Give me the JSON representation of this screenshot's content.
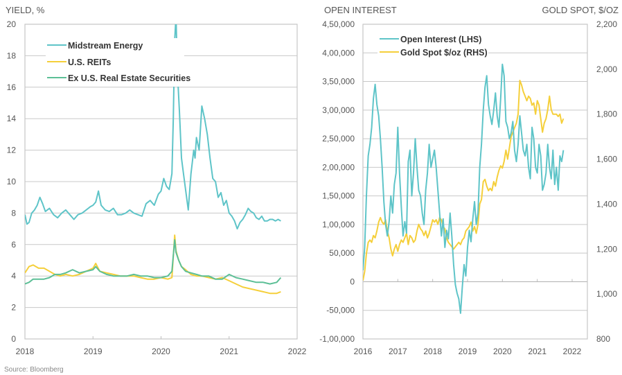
{
  "source": "Source: Bloomberg",
  "colors": {
    "teal": "#5ec4c8",
    "yellow": "#f5cf3a",
    "green": "#5cbf96",
    "grid": "#c8c8c8",
    "axis": "#bdbdbd"
  },
  "chart_data": [
    {
      "type": "line",
      "title": "",
      "ylabel": "YIELD, %",
      "xlabel": "",
      "x_ticks": [
        "2018",
        "2019",
        "2020",
        "2021",
        "2022"
      ],
      "xlim": [
        2018,
        2022
      ],
      "ylim": [
        0,
        20
      ],
      "y_ticks": [
        "0",
        "2",
        "4",
        "6",
        "8",
        "10",
        "12",
        "14",
        "16",
        "18",
        "20"
      ],
      "y_tick_values": [
        0,
        2,
        4,
        6,
        8,
        10,
        12,
        14,
        16,
        18,
        20
      ],
      "grid": true,
      "legend_position": "top-left",
      "series": [
        {
          "name": "Midstream Energy",
          "color_key": "teal",
          "x": [
            2018.0,
            2018.03,
            2018.06,
            2018.1,
            2018.14,
            2018.18,
            2018.22,
            2018.26,
            2018.3,
            2018.36,
            2018.42,
            2018.48,
            2018.54,
            2018.6,
            2018.66,
            2018.72,
            2018.78,
            2018.84,
            2018.9,
            2018.96,
            2019.0,
            2019.04,
            2019.08,
            2019.12,
            2019.18,
            2019.24,
            2019.3,
            2019.36,
            2019.42,
            2019.48,
            2019.54,
            2019.6,
            2019.66,
            2019.72,
            2019.78,
            2019.84,
            2019.9,
            2019.96,
            2020.0,
            2020.04,
            2020.08,
            2020.12,
            2020.16,
            2020.18,
            2020.2,
            2020.22,
            2020.24,
            2020.27,
            2020.3,
            2020.33,
            2020.36,
            2020.4,
            2020.44,
            2020.48,
            2020.5,
            2020.52,
            2020.56,
            2020.6,
            2020.64,
            2020.68,
            2020.72,
            2020.76,
            2020.8,
            2020.84,
            2020.88,
            2020.92,
            2020.96,
            2021.0,
            2021.04,
            2021.08,
            2021.12,
            2021.16,
            2021.2,
            2021.24,
            2021.28,
            2021.32,
            2021.36,
            2021.4,
            2021.44,
            2021.48,
            2021.52,
            2021.56,
            2021.6,
            2021.64,
            2021.68,
            2021.72,
            2021.76
          ],
          "values": [
            7.9,
            7.3,
            7.4,
            8.0,
            8.2,
            8.5,
            9.0,
            8.6,
            8.1,
            8.3,
            7.9,
            7.7,
            8.0,
            8.2,
            7.9,
            7.6,
            7.9,
            8.0,
            8.2,
            8.4,
            8.5,
            8.7,
            9.4,
            8.5,
            8.2,
            8.1,
            8.3,
            7.9,
            7.9,
            8.0,
            8.2,
            8.0,
            7.9,
            7.8,
            8.6,
            8.8,
            8.5,
            9.2,
            9.4,
            10.2,
            9.7,
            9.5,
            10.5,
            14.0,
            19.0,
            20.5,
            17.0,
            14.5,
            11.5,
            10.5,
            9.5,
            8.2,
            10.5,
            12.0,
            11.5,
            12.8,
            12.0,
            14.8,
            14.0,
            13.0,
            11.5,
            10.2,
            10.0,
            9.0,
            9.3,
            8.5,
            8.8,
            8.0,
            7.8,
            7.5,
            7.0,
            7.4,
            7.6,
            7.9,
            8.3,
            8.1,
            8.0,
            7.7,
            7.6,
            7.8,
            7.5,
            7.5,
            7.6,
            7.6,
            7.5,
            7.6,
            7.5
          ]
        },
        {
          "name": "U.S. REITs",
          "color_key": "yellow",
          "x": [
            2018.0,
            2018.06,
            2018.12,
            2018.2,
            2018.28,
            2018.36,
            2018.44,
            2018.52,
            2018.6,
            2018.7,
            2018.8,
            2018.9,
            2019.0,
            2019.04,
            2019.1,
            2019.2,
            2019.3,
            2019.4,
            2019.5,
            2019.6,
            2019.7,
            2019.8,
            2019.9,
            2020.0,
            2020.1,
            2020.16,
            2020.2,
            2020.22,
            2020.26,
            2020.3,
            2020.36,
            2020.44,
            2020.52,
            2020.6,
            2020.7,
            2020.8,
            2020.9,
            2021.0,
            2021.1,
            2021.2,
            2021.3,
            2021.4,
            2021.5,
            2021.6,
            2021.7,
            2021.76
          ],
          "values": [
            4.2,
            4.6,
            4.7,
            4.5,
            4.5,
            4.3,
            4.1,
            4.0,
            4.1,
            4.0,
            4.1,
            4.3,
            4.5,
            4.8,
            4.3,
            4.2,
            4.1,
            4.0,
            4.0,
            4.0,
            3.9,
            3.8,
            3.8,
            3.9,
            3.8,
            3.9,
            6.6,
            5.6,
            5.0,
            4.6,
            4.4,
            4.1,
            4.0,
            4.0,
            3.9,
            3.8,
            3.9,
            3.7,
            3.5,
            3.3,
            3.2,
            3.1,
            3.0,
            2.9,
            2.9,
            3.0
          ]
        },
        {
          "name": "Ex U.S. Real Estate Securities",
          "color_key": "green",
          "x": [
            2018.0,
            2018.06,
            2018.12,
            2018.2,
            2018.28,
            2018.36,
            2018.44,
            2018.52,
            2018.6,
            2018.7,
            2018.8,
            2018.9,
            2019.0,
            2019.04,
            2019.1,
            2019.2,
            2019.3,
            2019.4,
            2019.5,
            2019.6,
            2019.7,
            2019.8,
            2019.9,
            2020.0,
            2020.1,
            2020.16,
            2020.2,
            2020.22,
            2020.26,
            2020.3,
            2020.36,
            2020.44,
            2020.52,
            2020.6,
            2020.7,
            2020.8,
            2020.9,
            2021.0,
            2021.1,
            2021.2,
            2021.3,
            2021.4,
            2021.5,
            2021.6,
            2021.7,
            2021.76
          ],
          "values": [
            3.5,
            3.6,
            3.8,
            3.8,
            3.8,
            3.9,
            4.1,
            4.1,
            4.2,
            4.4,
            4.2,
            4.3,
            4.4,
            4.6,
            4.3,
            4.1,
            4.0,
            4.0,
            4.0,
            4.1,
            4.0,
            4.0,
            3.9,
            3.9,
            4.0,
            4.3,
            6.3,
            5.5,
            5.0,
            4.6,
            4.3,
            4.2,
            4.1,
            4.0,
            4.0,
            3.8,
            3.8,
            4.1,
            3.9,
            3.8,
            3.7,
            3.6,
            3.6,
            3.5,
            3.6,
            3.9
          ]
        }
      ]
    },
    {
      "type": "line",
      "title": "",
      "ylabel": "OPEN INTEREST",
      "y2label": "GOLD SPOT, $/OZ",
      "xlabel": "",
      "x_ticks": [
        "2016",
        "2017",
        "2018",
        "2019",
        "2020",
        "2021",
        "2022"
      ],
      "xlim": [
        2016,
        2022
      ],
      "ylim": [
        -100000,
        450000
      ],
      "y_ticks": [
        "-1,00,000",
        "-50,000",
        "0",
        "50,000",
        "1,00,000",
        "1,50,000",
        "2,00,000",
        "2,50,000",
        "3,00,000",
        "3,50,000",
        "4,00,000",
        "4,50,000"
      ],
      "y_tick_values": [
        -100000,
        -50000,
        0,
        50000,
        100000,
        150000,
        200000,
        250000,
        300000,
        350000,
        400000,
        450000
      ],
      "y2lim": [
        800,
        2200
      ],
      "y2_ticks": [
        "800",
        "1,000",
        "1,200",
        "1,400",
        "1,600",
        "1,800",
        "2,000",
        "2,200"
      ],
      "y2_tick_values": [
        800,
        1000,
        1200,
        1400,
        1600,
        1800,
        2000,
        2200
      ],
      "grid": true,
      "legend_position": "top-left",
      "series": [
        {
          "name": "Open Interest (LHS)",
          "color_key": "teal",
          "axis": "left",
          "x": [
            2016.0,
            2016.05,
            2016.1,
            2016.15,
            2016.2,
            2016.25,
            2016.3,
            2016.35,
            2016.4,
            2016.45,
            2016.5,
            2016.55,
            2016.6,
            2016.65,
            2016.7,
            2016.75,
            2016.8,
            2016.85,
            2016.9,
            2016.95,
            2017.0,
            2017.05,
            2017.1,
            2017.15,
            2017.2,
            2017.25,
            2017.3,
            2017.35,
            2017.4,
            2017.45,
            2017.5,
            2017.55,
            2017.6,
            2017.65,
            2017.7,
            2017.75,
            2017.8,
            2017.85,
            2017.9,
            2017.95,
            2018.0,
            2018.05,
            2018.1,
            2018.15,
            2018.2,
            2018.25,
            2018.3,
            2018.35,
            2018.4,
            2018.45,
            2018.5,
            2018.55,
            2018.6,
            2018.65,
            2018.7,
            2018.75,
            2018.8,
            2018.85,
            2018.9,
            2018.95,
            2019.0,
            2019.05,
            2019.1,
            2019.15,
            2019.2,
            2019.25,
            2019.3,
            2019.35,
            2019.4,
            2019.45,
            2019.5,
            2019.55,
            2019.6,
            2019.65,
            2019.7,
            2019.75,
            2019.8,
            2019.85,
            2019.9,
            2019.95,
            2020.0,
            2020.05,
            2020.1,
            2020.15,
            2020.2,
            2020.25,
            2020.3,
            2020.35,
            2020.4,
            2020.45,
            2020.5,
            2020.55,
            2020.6,
            2020.65,
            2020.7,
            2020.75,
            2020.8,
            2020.85,
            2020.9,
            2020.95,
            2021.0,
            2021.05,
            2021.1,
            2021.15,
            2021.2,
            2021.25,
            2021.3,
            2021.35,
            2021.4,
            2021.45,
            2021.5,
            2021.55,
            2021.6,
            2021.65,
            2021.7,
            2021.75
          ],
          "values": [
            20000,
            60000,
            150000,
            220000,
            240000,
            270000,
            320000,
            345000,
            310000,
            290000,
            250000,
            200000,
            140000,
            100000,
            80000,
            105000,
            150000,
            120000,
            170000,
            190000,
            270000,
            190000,
            130000,
            80000,
            105000,
            85000,
            210000,
            230000,
            150000,
            190000,
            250000,
            200000,
            160000,
            150000,
            120000,
            100000,
            160000,
            190000,
            240000,
            200000,
            215000,
            230000,
            200000,
            160000,
            120000,
            80000,
            110000,
            60000,
            90000,
            75000,
            120000,
            80000,
            30000,
            -5000,
            -20000,
            -30000,
            -55000,
            -10000,
            30000,
            10000,
            60000,
            90000,
            70000,
            110000,
            140000,
            100000,
            120000,
            200000,
            240000,
            300000,
            340000,
            360000,
            310000,
            290000,
            275000,
            300000,
            330000,
            290000,
            270000,
            320000,
            380000,
            360000,
            280000,
            270000,
            250000,
            260000,
            280000,
            230000,
            210000,
            240000,
            290000,
            260000,
            230000,
            220000,
            240000,
            200000,
            180000,
            270000,
            250000,
            200000,
            190000,
            240000,
            220000,
            160000,
            170000,
            190000,
            240000,
            200000,
            180000,
            230000,
            170000,
            200000,
            160000,
            220000,
            210000,
            230000
          ]
        },
        {
          "name": "Gold Spot $/oz (RHS)",
          "color_key": "yellow",
          "axis": "right",
          "x": [
            2016.0,
            2016.05,
            2016.1,
            2016.15,
            2016.2,
            2016.25,
            2016.3,
            2016.35,
            2016.4,
            2016.45,
            2016.5,
            2016.55,
            2016.6,
            2016.65,
            2016.7,
            2016.75,
            2016.8,
            2016.85,
            2016.9,
            2016.95,
            2017.0,
            2017.05,
            2017.1,
            2017.15,
            2017.2,
            2017.25,
            2017.3,
            2017.35,
            2017.4,
            2017.45,
            2017.5,
            2017.55,
            2017.6,
            2017.65,
            2017.7,
            2017.75,
            2017.8,
            2017.85,
            2017.9,
            2017.95,
            2018.0,
            2018.05,
            2018.1,
            2018.15,
            2018.2,
            2018.25,
            2018.3,
            2018.35,
            2018.4,
            2018.45,
            2018.5,
            2018.55,
            2018.6,
            2018.65,
            2018.7,
            2018.75,
            2018.8,
            2018.85,
            2018.9,
            2018.95,
            2019.0,
            2019.05,
            2019.1,
            2019.15,
            2019.2,
            2019.25,
            2019.3,
            2019.35,
            2019.4,
            2019.45,
            2019.5,
            2019.55,
            2019.6,
            2019.65,
            2019.7,
            2019.75,
            2019.8,
            2019.85,
            2019.9,
            2019.95,
            2020.0,
            2020.05,
            2020.1,
            2020.15,
            2020.2,
            2020.25,
            2020.3,
            2020.35,
            2020.4,
            2020.45,
            2020.5,
            2020.55,
            2020.6,
            2020.65,
            2020.7,
            2020.75,
            2020.8,
            2020.85,
            2020.9,
            2020.95,
            2021.0,
            2021.05,
            2021.1,
            2021.15,
            2021.2,
            2021.25,
            2021.3,
            2021.35,
            2021.4,
            2021.45,
            2021.5,
            2021.55,
            2021.6,
            2021.65,
            2021.7,
            2021.75
          ],
          "values": [
            1060,
            1100,
            1180,
            1230,
            1240,
            1230,
            1260,
            1250,
            1280,
            1320,
            1340,
            1320,
            1310,
            1330,
            1280,
            1250,
            1200,
            1170,
            1200,
            1220,
            1190,
            1220,
            1240,
            1230,
            1250,
            1270,
            1220,
            1260,
            1250,
            1230,
            1240,
            1280,
            1310,
            1290,
            1280,
            1260,
            1280,
            1250,
            1270,
            1300,
            1330,
            1320,
            1330,
            1310,
            1340,
            1330,
            1300,
            1290,
            1250,
            1230,
            1220,
            1210,
            1200,
            1210,
            1220,
            1230,
            1220,
            1240,
            1250,
            1280,
            1290,
            1300,
            1320,
            1280,
            1300,
            1270,
            1310,
            1400,
            1420,
            1500,
            1510,
            1480,
            1460,
            1470,
            1460,
            1500,
            1480,
            1520,
            1550,
            1570,
            1560,
            1590,
            1640,
            1600,
            1650,
            1700,
            1720,
            1740,
            1760,
            1800,
            1950,
            1930,
            1900,
            1880,
            1860,
            1880,
            1870,
            1840,
            1850,
            1800,
            1860,
            1840,
            1780,
            1720,
            1760,
            1780,
            1820,
            1880,
            1820,
            1800,
            1800,
            1800,
            1790,
            1800,
            1760,
            1780
          ]
        }
      ]
    }
  ]
}
